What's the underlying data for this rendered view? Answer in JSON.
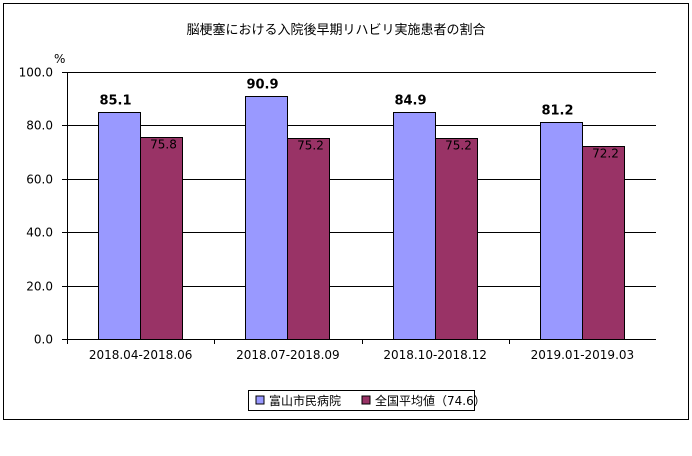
{
  "chart_data": {
    "type": "bar",
    "title": "脳梗塞における入院後早期リハビリ実施患者の割合",
    "ylabel": "%",
    "xlabel": "",
    "ylim": [
      0,
      100
    ],
    "yticks": [
      "0.0",
      "20.0",
      "40.0",
      "60.0",
      "80.0",
      "100.0"
    ],
    "categories": [
      "2018.04-2018.06",
      "2018.07-2018.09",
      "2018.10-2018.12",
      "2019.01-2019.03"
    ],
    "series": [
      {
        "name": "富山市民病院",
        "values": [
          85.1,
          90.9,
          84.9,
          81.2
        ],
        "labels": [
          "85.1",
          "90.9",
          "84.9",
          "81.2"
        ],
        "color": "#9999ff"
      },
      {
        "name": "全国平均値（74.6）",
        "values": [
          75.8,
          75.2,
          75.2,
          72.2
        ],
        "labels": [
          "75.8",
          "75.2",
          "75.2",
          "72.2"
        ],
        "color": "#993366"
      }
    ],
    "grid": true,
    "legend_position": "bottom"
  }
}
